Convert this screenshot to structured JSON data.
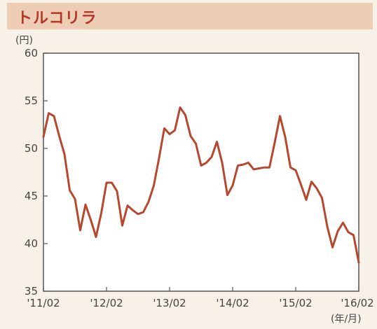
{
  "header": {
    "title": "トルコリラ"
  },
  "colors": {
    "header_bg": "#edcdb3",
    "title": "#b6372a",
    "line": "#b5482e",
    "panel_bg": "#f7f1e8"
  },
  "chart_data": {
    "type": "line",
    "title": "トルコリラ",
    "ylabel": "(円)",
    "xlabel": "(年/月)",
    "ylim": [
      35,
      60
    ],
    "yticks": [
      35,
      40,
      45,
      50,
      55,
      60
    ],
    "xlim": [
      "2011-02",
      "2016-02"
    ],
    "xticks": [
      "'11/02",
      "'12/02",
      "'13/02",
      "'14/02",
      "'15/02",
      "'16/02"
    ],
    "grid": false,
    "series": [
      {
        "x": [
          "2011-02",
          "2011-03",
          "2011-04",
          "2011-05",
          "2011-06",
          "2011-07",
          "2011-08",
          "2011-09",
          "2011-10",
          "2011-11",
          "2011-12",
          "2012-01",
          "2012-02",
          "2012-03",
          "2012-04",
          "2012-05",
          "2012-06",
          "2012-07",
          "2012-08",
          "2012-09",
          "2012-10",
          "2012-11",
          "2012-12",
          "2013-01",
          "2013-02",
          "2013-03",
          "2013-04",
          "2013-05",
          "2013-06",
          "2013-07",
          "2013-08",
          "2013-09",
          "2013-10",
          "2013-11",
          "2013-12",
          "2014-01",
          "2014-02",
          "2014-03",
          "2014-04",
          "2014-05",
          "2014-06",
          "2014-07",
          "2014-08",
          "2014-09",
          "2014-10",
          "2014-11",
          "2014-12",
          "2015-01",
          "2015-02",
          "2015-03",
          "2015-04",
          "2015-05",
          "2015-06",
          "2015-07",
          "2015-08",
          "2015-09",
          "2015-10",
          "2015-11",
          "2015-12",
          "2016-01",
          "2016-02"
        ],
        "values": [
          51.2,
          53.7,
          53.4,
          51.3,
          49.4,
          45.6,
          44.7,
          41.4,
          44.1,
          42.5,
          40.7,
          43.2,
          46.4,
          46.4,
          45.5,
          41.9,
          44.0,
          43.5,
          43.1,
          43.3,
          44.4,
          46.1,
          49.0,
          52.1,
          51.5,
          51.9,
          54.3,
          53.5,
          51.3,
          50.5,
          48.2,
          48.5,
          49.1,
          50.7,
          48.5,
          45.1,
          46.1,
          48.2,
          48.3,
          48.5,
          47.8,
          47.9,
          48.0,
          48.0,
          50.6,
          53.4,
          51.2,
          48.0,
          47.7,
          46.2,
          44.6,
          46.5,
          45.8,
          44.8,
          41.8,
          39.6,
          41.3,
          42.2,
          41.2,
          40.9,
          38.0
        ]
      }
    ]
  }
}
